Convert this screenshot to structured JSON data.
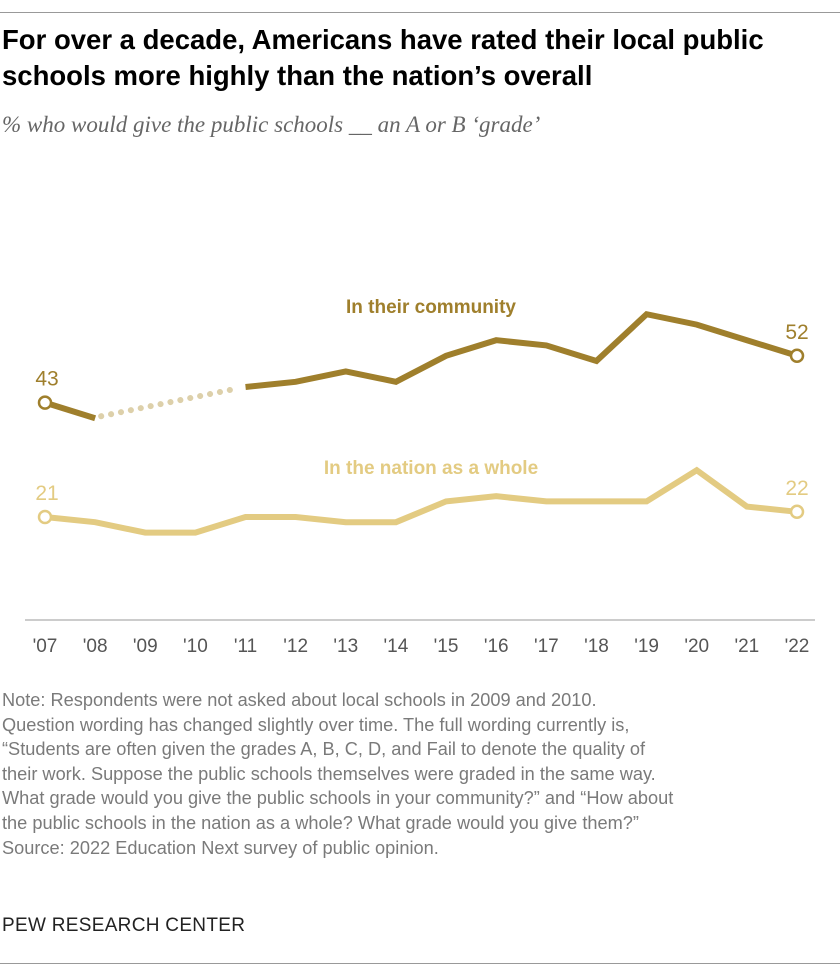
{
  "title": "For over a decade, Americans have rated their local public schools more highly than the nation’s overall",
  "subtitle": "% who would give the public schools __ an A or B ‘grade’",
  "chart_data": {
    "type": "line",
    "x": [
      "'07",
      "'08",
      "'09",
      "'10",
      "'11",
      "'12",
      "'13",
      "'14",
      "'15",
      "'16",
      "'17",
      "'18",
      "'19",
      "'20",
      "'21",
      "'22"
    ],
    "series": [
      {
        "name": "In their community",
        "color": "#9f7f2c",
        "values": [
          43,
          40,
          null,
          null,
          46,
          47,
          49,
          47,
          52,
          55,
          54,
          51,
          60,
          58,
          55,
          52
        ]
      },
      {
        "name": "In the nation as a whole",
        "color": "#e3cb82",
        "values": [
          21,
          20,
          18,
          18,
          21,
          21,
          20,
          20,
          24,
          25,
          24,
          24,
          24,
          30,
          23,
          22
        ]
      }
    ],
    "gap_color": "#ddd0aa",
    "data_labels": [
      {
        "series": 0,
        "index": 0,
        "text": "43"
      },
      {
        "series": 0,
        "index": 15,
        "text": "52"
      },
      {
        "series": 1,
        "index": 0,
        "text": "21"
      },
      {
        "series": 1,
        "index": 15,
        "text": "22"
      }
    ],
    "ylim": [
      10,
      70
    ],
    "grid": false,
    "xlabel": "",
    "ylabel": ""
  },
  "note_lines": [
    "Note: Respondents were not asked about local schools in 2009 and 2010.",
    "Question wording has changed slightly over time. The full wording currently is,",
    "“Students are often given the grades A, B, C, D, and Fail to denote the quality of",
    "their work. Suppose the public schools themselves were graded in the same way.",
    "What grade would you give the public schools in your community?” and “How about",
    "the public schools in the nation as a whole? What grade would you give them?”",
    "Source: 2022 Education Next survey of public opinion."
  ],
  "brand": "PEW RESEARCH CENTER"
}
